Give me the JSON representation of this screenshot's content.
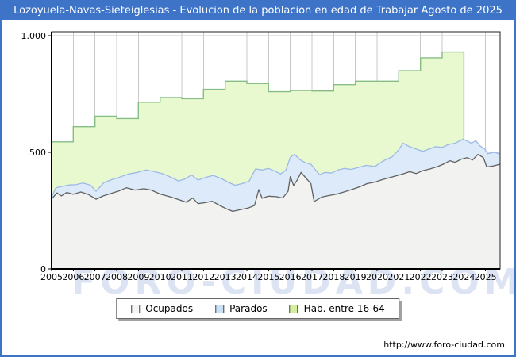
{
  "window": {
    "title": "Lozoyuela-Navas-Sieteiglesias - Evolucion de la poblacion en edad de Trabajar Agosto de 2025"
  },
  "watermark": "FORO-CIUDAD.COM",
  "footer": {
    "url": "http://www.foro-ciudad.com"
  },
  "colors": {
    "frame_border": "#3e74c8",
    "titlebar_bg": "#3e74c8",
    "titlebar_text": "#ffffff",
    "gridline": "#c9c9c9",
    "plot_border": "#222222",
    "axis": "#000000"
  },
  "legend": [
    {
      "label": "Ocupados",
      "fill": "#f5f5f3",
      "stroke": "#555555"
    },
    {
      "label": "Parados",
      "fill": "#cbdff5",
      "stroke": "#555555"
    },
    {
      "label": "Hab. entre 16-64",
      "fill": "#d3ef9e",
      "stroke": "#555555"
    }
  ],
  "chart_data": {
    "type": "area",
    "title": "Lozoyuela-Navas-Sieteiglesias - Evolucion de la poblacion en edad de Trabajar Agosto de 2025",
    "xlabel": "",
    "ylabel": "",
    "xlim": [
      2005,
      2025.67
    ],
    "ylim": [
      0,
      1017
    ],
    "grid": true,
    "legend_position": "bottom-center",
    "x_ticks": [
      "2005",
      "2006",
      "2007",
      "2008",
      "2009",
      "2010",
      "2011",
      "2012",
      "2013",
      "2014",
      "2015",
      "2016",
      "2017",
      "2018",
      "2019",
      "2020",
      "2021",
      "2022",
      "2023",
      "2024",
      "2025"
    ],
    "y_ticks": [
      {
        "v": 0,
        "label": "0"
      },
      {
        "v": 500,
        "label": "500"
      },
      {
        "v": 1000,
        "label": "1.000"
      }
    ],
    "series": [
      {
        "name": "Hab. entre 16-64",
        "style": "step-yearly",
        "fill": "#e8f9d0",
        "stroke": "#85bd85",
        "x": [
          2005,
          2006,
          2007,
          2008,
          2009,
          2010,
          2011,
          2012,
          2013,
          2014,
          2015,
          2016,
          2017,
          2018,
          2019,
          2020,
          2021,
          2022,
          2023
        ],
        "values": [
          545,
          610,
          655,
          645,
          715,
          735,
          730,
          770,
          805,
          795,
          760,
          765,
          763,
          790,
          805,
          805,
          850,
          905,
          930
        ]
      },
      {
        "name": "Parados",
        "cumulative_with": "Ocupados",
        "style": "line-area",
        "fill": "#dceafa",
        "stroke": "#9db9e6",
        "x": [
          2005.0,
          2005.2,
          2005.5,
          2005.8,
          2006.1,
          2006.45,
          2006.8,
          2007.05,
          2007.4,
          2007.8,
          2008.15,
          2008.55,
          2008.95,
          2009.35,
          2009.75,
          2010.15,
          2010.55,
          2010.85,
          2011.15,
          2011.45,
          2011.75,
          2012.05,
          2012.45,
          2012.85,
          2013.15,
          2013.45,
          2013.8,
          2014.1,
          2014.4,
          2014.7,
          2015.0,
          2015.3,
          2015.55,
          2015.8,
          2016.0,
          2016.2,
          2016.45,
          2016.7,
          2016.95,
          2017.15,
          2017.35,
          2017.6,
          2017.9,
          2018.2,
          2018.5,
          2018.8,
          2019.1,
          2019.5,
          2019.9,
          2020.3,
          2020.7,
          2021.0,
          2021.2,
          2021.5,
          2021.8,
          2022.1,
          2022.4,
          2022.7,
          2023.0,
          2023.3,
          2023.6,
          2023.95,
          2024.15,
          2024.35,
          2024.55,
          2024.75,
          2024.95,
          2025.1,
          2025.4,
          2025.67
        ],
        "values": [
          308,
          348,
          354,
          360,
          361,
          368,
          359,
          333,
          369,
          384,
          394,
          407,
          414,
          424,
          417,
          407,
          391,
          377,
          386,
          403,
          381,
          391,
          401,
          386,
          371,
          359,
          366,
          376,
          429,
          424,
          431,
          419,
          407,
          424,
          479,
          491,
          468,
          455,
          449,
          426,
          404,
          414,
          411,
          424,
          431,
          427,
          434,
          444,
          439,
          464,
          481,
          511,
          539,
          524,
          514,
          504,
          514,
          524,
          521,
          534,
          539,
          556,
          549,
          539,
          550,
          527,
          516,
          494,
          500,
          493
        ]
      },
      {
        "name": "Ocupados",
        "style": "line-area",
        "fill": "#f2f2f0",
        "stroke": "#616161",
        "x": [
          2005.0,
          2005.25,
          2005.45,
          2005.7,
          2006.0,
          2006.35,
          2006.7,
          2007.05,
          2007.4,
          2007.75,
          2008.1,
          2008.45,
          2008.85,
          2009.25,
          2009.6,
          2010.0,
          2010.5,
          2010.9,
          2011.2,
          2011.5,
          2011.75,
          2012.05,
          2012.4,
          2012.75,
          2013.05,
          2013.35,
          2013.7,
          2014.05,
          2014.35,
          2014.55,
          2014.7,
          2015.0,
          2015.35,
          2015.65,
          2015.9,
          2016.0,
          2016.15,
          2016.3,
          2016.5,
          2016.7,
          2016.95,
          2017.1,
          2017.45,
          2017.8,
          2018.15,
          2018.5,
          2018.85,
          2019.2,
          2019.55,
          2019.9,
          2020.25,
          2020.6,
          2020.95,
          2021.25,
          2021.5,
          2021.8,
          2022.1,
          2022.45,
          2022.8,
          2023.1,
          2023.35,
          2023.6,
          2023.9,
          2024.15,
          2024.4,
          2024.65,
          2024.9,
          2025.05,
          2025.35,
          2025.67
        ],
        "values": [
          300,
          326,
          313,
          328,
          320,
          330,
          319,
          299,
          314,
          324,
          334,
          348,
          338,
          344,
          338,
          321,
          308,
          296,
          286,
          304,
          280,
          284,
          290,
          272,
          258,
          247,
          254,
          261,
          272,
          340,
          303,
          312,
          310,
          304,
          333,
          396,
          358,
          378,
          414,
          392,
          366,
          289,
          308,
          315,
          321,
          331,
          341,
          352,
          366,
          372,
          383,
          392,
          401,
          409,
          417,
          409,
          421,
          429,
          439,
          451,
          464,
          457,
          471,
          477,
          467,
          491,
          477,
          437,
          441,
          449
        ]
      }
    ]
  }
}
